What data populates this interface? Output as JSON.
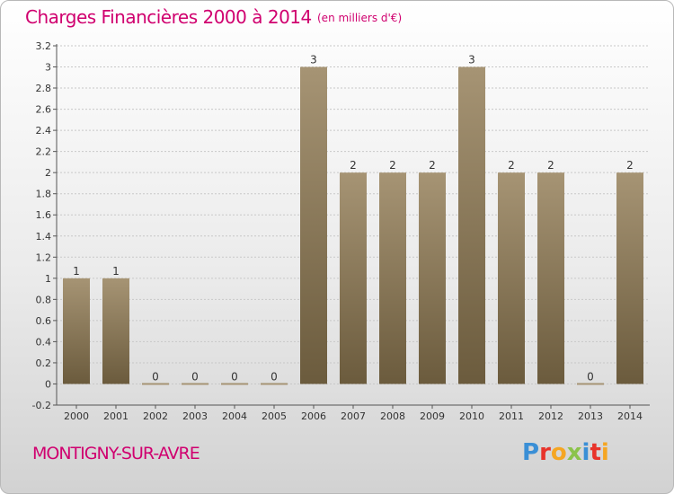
{
  "header": {
    "title": "Charges Financières 2000 à 2014",
    "unit": "(en milliers d'€)"
  },
  "footer": {
    "place": "MONTIGNY-SUR-AVRE",
    "logo": "Proxiti"
  },
  "colors": {
    "title": "#d0006f",
    "bar_top": "#a69474",
    "bar_bottom": "#6b5b3d",
    "logo_letters": [
      "#3a8fd6",
      "#e8332a",
      "#f5a623",
      "#8bc34a",
      "#3a8fd6",
      "#e8332a",
      "#f5a623"
    ]
  },
  "chart_data": {
    "type": "bar",
    "title": "Charges Financières 2000 à 2014",
    "subtitle": "(en milliers d'€)",
    "categories": [
      "2000",
      "2001",
      "2002",
      "2003",
      "2004",
      "2005",
      "2006",
      "2007",
      "2008",
      "2009",
      "2010",
      "2011",
      "2012",
      "2013",
      "2014"
    ],
    "values": [
      1,
      1,
      0,
      0,
      0,
      0,
      3,
      2,
      2,
      2,
      3,
      2,
      2,
      0,
      2
    ],
    "value_labels": [
      "1",
      "1",
      "0",
      "0",
      "0",
      "0",
      "3",
      "2",
      "2",
      "2",
      "3",
      "2",
      "2",
      "0",
      "2"
    ],
    "yticks": [
      "-0.2",
      "0",
      "0.2",
      "0.4",
      "0.6",
      "0.8",
      "1",
      "1.2",
      "1.4",
      "1.6",
      "1.8",
      "2",
      "2.2",
      "2.4",
      "2.6",
      "2.8",
      "3",
      "3.2"
    ],
    "ylim": [
      -0.2,
      3.2
    ],
    "grid": "horizontal dashed",
    "legend": "none"
  }
}
